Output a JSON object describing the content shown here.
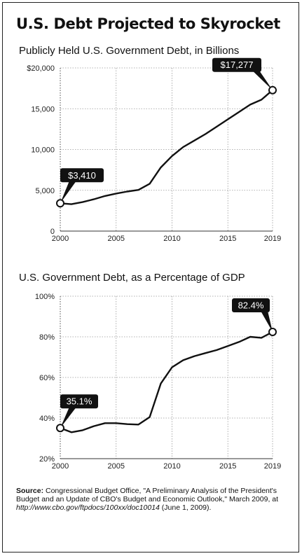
{
  "title": "U.S. Debt Projected to Skyrocket",
  "chart_data": [
    {
      "type": "line",
      "title": "Publicly Held U.S. Government Debt, in Billions",
      "xlabel": "",
      "ylabel": "",
      "xlim": [
        2000,
        2019
      ],
      "ylim": [
        0,
        20000
      ],
      "x_ticks": [
        "2000",
        "2005",
        "2010",
        "2015",
        "2019"
      ],
      "y_ticks": [
        "0",
        "5,000",
        "10,000",
        "15,000",
        "$20,000"
      ],
      "grid": "dotted",
      "series": [
        {
          "x": [
            2000,
            2001,
            2002,
            2003,
            2004,
            2005,
            2006,
            2007,
            2008,
            2009,
            2010,
            2011,
            2012,
            2013,
            2014,
            2015,
            2016,
            2017,
            2018,
            2019
          ],
          "values": [
            3410,
            3300,
            3550,
            3900,
            4300,
            4600,
            4850,
            5050,
            5800,
            7800,
            9200,
            10300,
            11100,
            11900,
            12800,
            13700,
            14600,
            15500,
            16100,
            17277
          ]
        }
      ],
      "annotations": [
        {
          "x": 2000,
          "y": 3410,
          "label": "$3,410"
        },
        {
          "x": 2019,
          "y": 17277,
          "label": "$17,277"
        }
      ]
    },
    {
      "type": "line",
      "title": "U.S. Government Debt, as a Percentage of GDP",
      "xlabel": "",
      "ylabel": "",
      "xlim": [
        2000,
        2019
      ],
      "ylim": [
        20,
        100
      ],
      "x_ticks": [
        "2000",
        "2005",
        "2010",
        "2015",
        "2019"
      ],
      "y_ticks": [
        "20%",
        "40%",
        "60%",
        "80%",
        "100%"
      ],
      "grid": "dotted",
      "series": [
        {
          "x": [
            2000,
            2001,
            2002,
            2003,
            2004,
            2005,
            2006,
            2007,
            2008,
            2009,
            2010,
            2011,
            2012,
            2013,
            2014,
            2015,
            2016,
            2017,
            2018,
            2019
          ],
          "values": [
            35.1,
            33.0,
            34.0,
            36.0,
            37.5,
            37.5,
            37.0,
            36.8,
            40.5,
            57.0,
            65.0,
            68.5,
            70.5,
            72.0,
            73.5,
            75.5,
            77.5,
            80.0,
            79.5,
            82.4
          ]
        }
      ],
      "annotations": [
        {
          "x": 2000,
          "y": 35.1,
          "label": "35.1%"
        },
        {
          "x": 2019,
          "y": 82.4,
          "label": "82.4%"
        }
      ]
    }
  ],
  "source": {
    "label": "Source:",
    "text": " Congressional Budget Office, \"A Preliminary Analysis of the President's Budget and an Update of CBO's Budget and Economic Outlook,\" March 2009, at ",
    "url": "http://www.cbo.gov/ftpdocs/100xx/doc10014",
    "tail": " (June 1, 2009)."
  },
  "colors": {
    "line": "#111111",
    "grid": "#999999",
    "callout_bg": "#111111",
    "callout_text": "#ffffff"
  }
}
